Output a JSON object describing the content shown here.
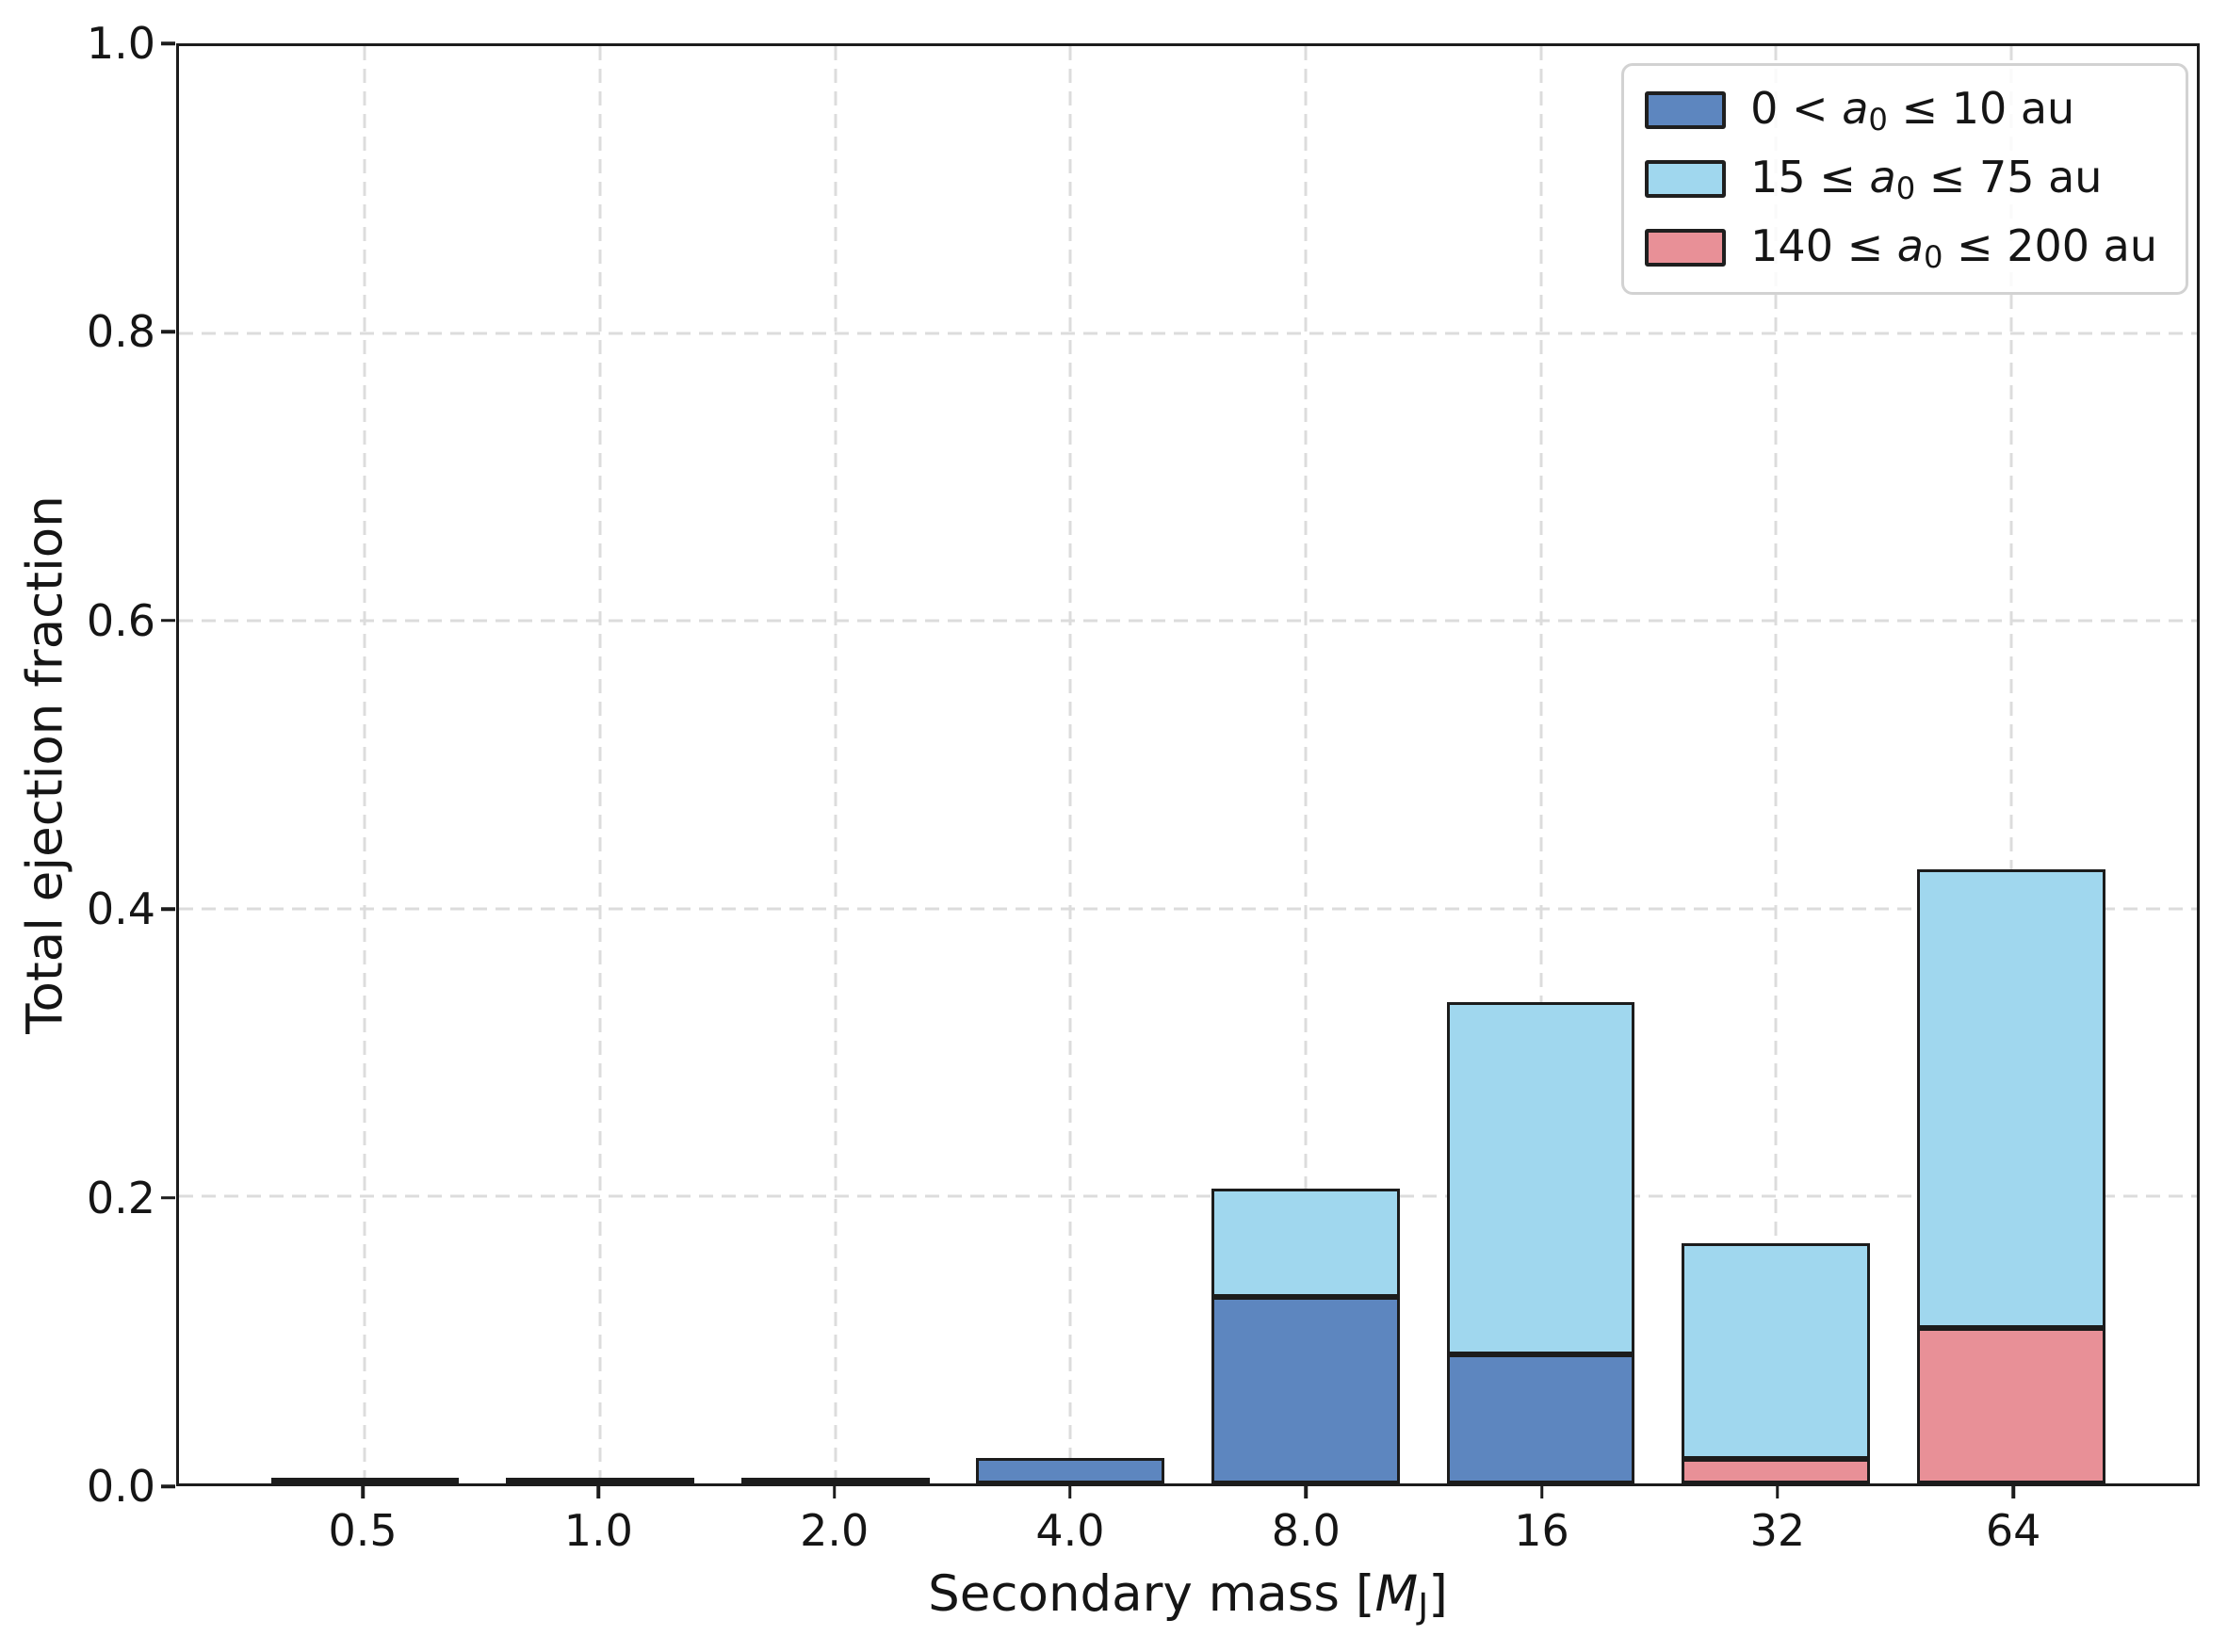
{
  "chart_data": {
    "type": "bar",
    "stacked": true,
    "title": "",
    "xlabel": "Secondary mass [M_J]",
    "ylabel": "Total ejection fraction",
    "categories": [
      "0.5",
      "1.0",
      "2.0",
      "4.0",
      "8.0",
      "16",
      "32",
      "64"
    ],
    "series": [
      {
        "name": "0 < a₀ ≤ 10 au",
        "color": "#5d86bf",
        "values": [
          0.001,
          0.001,
          0.001,
          0.018,
          0.13,
          0.09,
          0.0,
          0.0
        ]
      },
      {
        "name": "15 ≤ a₀ ≤ 75 au",
        "color": "#a0d7ee",
        "values": [
          0.0,
          0.0,
          0.0,
          0.0,
          0.075,
          0.245,
          0.15,
          0.319
        ]
      },
      {
        "name": "140 ≤ a₀ ≤ 200 au",
        "color": "#e89097",
        "values": [
          0.0,
          0.0,
          0.0,
          0.0,
          0.0,
          0.0,
          0.017,
          0.108
        ]
      }
    ],
    "stack_order_bottom_to_top": [
      0,
      2,
      1
    ],
    "totals": [
      0.001,
      0.001,
      0.001,
      0.018,
      0.205,
      0.335,
      0.167,
      0.427
    ],
    "ylim": [
      0,
      1
    ],
    "y_ticks": [
      "0.0",
      "0.2",
      "0.4",
      "0.6",
      "0.8",
      "1.0"
    ],
    "grid": true,
    "grid_style": "dashed",
    "bar_edge_color": "#1c1c1c",
    "legend_position": "upper right"
  },
  "labels": {
    "y_axis": "Total ejection fraction",
    "x_axis_parts": {
      "pre": "Secondary mass [",
      "var": "M",
      "sub": "J",
      "post": "]"
    }
  },
  "legend": {
    "items": [
      {
        "pre": "0 < ",
        "var": "a",
        "sub": "0",
        "post": " ≤ 10 au",
        "color": "#5d86bf"
      },
      {
        "pre": "15 ≤ ",
        "var": "a",
        "sub": "0",
        "post": " ≤ 75 au",
        "color": "#a0d7ee"
      },
      {
        "pre": "140 ≤ ",
        "var": "a",
        "sub": "0",
        "post": " ≤ 200 au",
        "color": "#e89097"
      }
    ]
  }
}
